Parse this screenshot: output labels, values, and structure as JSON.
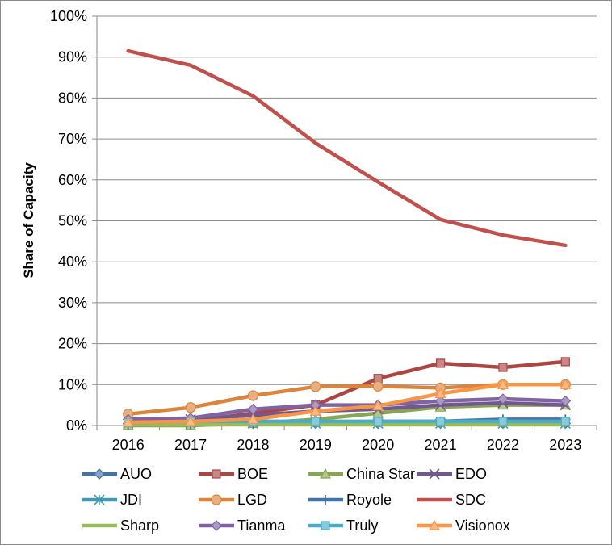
{
  "chart_data": {
    "type": "line",
    "title": "",
    "xlabel": "",
    "ylabel": "Share of Capacity",
    "x": [
      "2016",
      "2017",
      "2018",
      "2019",
      "2020",
      "2021",
      "2022",
      "2023"
    ],
    "ylim": [
      0,
      100
    ],
    "y_ticks": [
      "0%",
      "10%",
      "20%",
      "30%",
      "40%",
      "50%",
      "60%",
      "70%",
      "80%",
      "90%",
      "100%"
    ],
    "grid": "horizontal",
    "legend_position": "bottom",
    "series": [
      {
        "name": "AUO",
        "values": [
          0.5,
          0.5,
          0.5,
          0.5,
          0.5,
          0.5,
          0.5,
          0.5
        ],
        "color": "#4572a7",
        "marker": "diamond"
      },
      {
        "name": "BOE",
        "values": [
          0.5,
          1,
          3,
          5,
          11.5,
          15.2,
          14.2,
          15.6
        ],
        "color": "#aa4643",
        "marker": "square"
      },
      {
        "name": "China Star",
        "values": [
          0,
          0,
          0.5,
          1.5,
          3,
          4.5,
          5,
          5
        ],
        "color": "#89a54e",
        "marker": "triangle"
      },
      {
        "name": "EDO",
        "values": [
          1.5,
          1.5,
          2.5,
          3.5,
          4,
          5,
          5.5,
          5
        ],
        "color": "#71588f",
        "marker": "x"
      },
      {
        "name": "JDI",
        "values": [
          0.5,
          0.5,
          0.5,
          0.5,
          0.5,
          0.5,
          0.5,
          0.5
        ],
        "color": "#4198af",
        "marker": "star"
      },
      {
        "name": "LGD",
        "values": [
          2.8,
          4.4,
          7.3,
          9.5,
          9.6,
          9.2,
          10,
          10
        ],
        "color": "#db843d",
        "marker": "circle"
      },
      {
        "name": "Royole",
        "values": [
          0.2,
          0.3,
          0.5,
          0.8,
          1,
          1,
          1.5,
          1.5
        ],
        "color": "#4572a7",
        "marker": "plus"
      },
      {
        "name": "SDC",
        "values": [
          91.5,
          88,
          80.5,
          69,
          59.5,
          50.3,
          46.5,
          44
        ],
        "color": "#c0504d",
        "marker": "none"
      },
      {
        "name": "Sharp",
        "values": [
          0.2,
          0.2,
          0.2,
          0.2,
          0.2,
          0.2,
          0.2,
          0.2
        ],
        "color": "#9bbb59",
        "marker": "none"
      },
      {
        "name": "Tianma",
        "values": [
          1.5,
          1.8,
          4,
          5,
          5,
          6,
          6.5,
          6
        ],
        "color": "#8064a2",
        "marker": "diamond"
      },
      {
        "name": "Truly",
        "values": [
          0.7,
          1,
          1,
          1,
          1,
          1,
          1,
          1
        ],
        "color": "#4bacc6",
        "marker": "square"
      },
      {
        "name": "Visionox",
        "values": [
          0.8,
          1,
          1.5,
          3.5,
          4.8,
          7.8,
          10,
          10
        ],
        "color": "#f79646",
        "marker": "triangle"
      }
    ]
  }
}
